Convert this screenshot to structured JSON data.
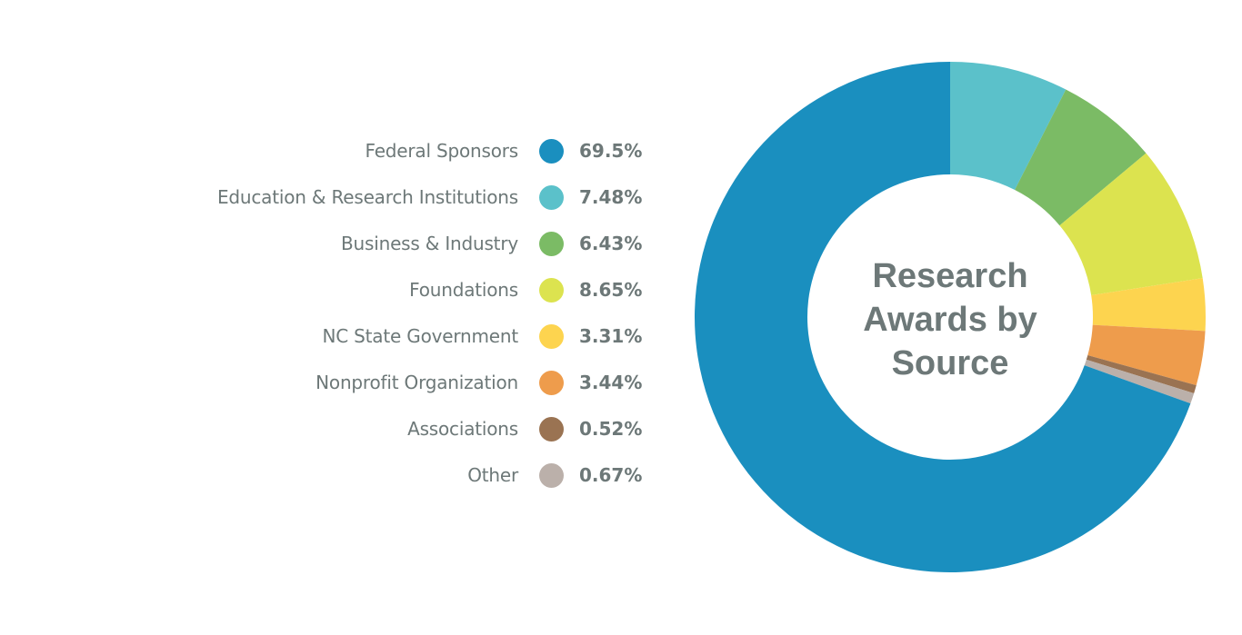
{
  "chart_data": {
    "type": "pie",
    "donut": true,
    "title": "Research Awards by Source",
    "title_lines": [
      "Research",
      "Awards by",
      "Source"
    ],
    "unit": "%",
    "start_angle": "12 o'clock, clockwise",
    "legend_position": "left",
    "categories": [
      "Federal Sponsors",
      "Education & Research Institutions",
      "Business & Industry",
      "Foundations",
      "NC State Government",
      "Nonprofit Organization",
      "Associations",
      "Other"
    ],
    "values": [
      69.5,
      7.48,
      6.43,
      8.65,
      3.31,
      3.44,
      0.52,
      0.67
    ],
    "value_labels": [
      "69.5%",
      "7.48%",
      "6.43%",
      "8.65%",
      "3.31%",
      "3.44%",
      "0.52%",
      "0.67%"
    ],
    "colors": [
      "#1a8fbf",
      "#5bc1ca",
      "#7bbb65",
      "#dce34f",
      "#fdd44f",
      "#ee9c4c",
      "#9a7352",
      "#bbb0aa"
    ],
    "draw_order": [
      1,
      2,
      3,
      4,
      5,
      6,
      7,
      0
    ]
  }
}
